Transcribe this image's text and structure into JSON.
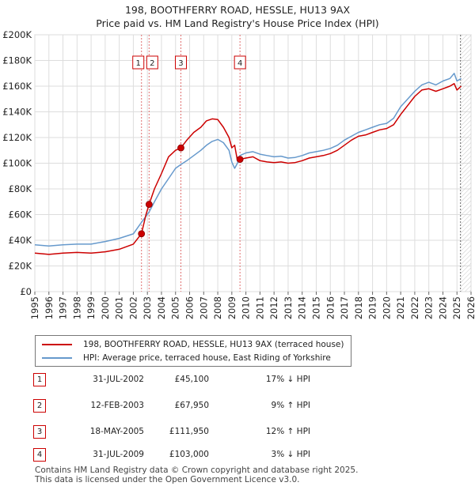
{
  "header": {
    "title_line1": "198, BOOTHFERRY ROAD, HESSLE, HU13 9AX",
    "title_line2": "Price paid vs. HM Land Registry's House Price Index (HPI)"
  },
  "chart_data": {
    "type": "line",
    "xlim": [
      1995,
      2026
    ],
    "ylim": [
      0,
      200000
    ],
    "x_ticks": [
      1995,
      1996,
      1997,
      1998,
      1999,
      2000,
      2001,
      2002,
      2003,
      2004,
      2005,
      2006,
      2007,
      2008,
      2009,
      2010,
      2011,
      2012,
      2013,
      2014,
      2015,
      2016,
      2017,
      2018,
      2019,
      2020,
      2021,
      2022,
      2023,
      2024,
      2025,
      2026
    ],
    "x_tick_labels": [
      "1995",
      "1996",
      "1997",
      "1998",
      "1999",
      "2000",
      "2001",
      "2002",
      "2003",
      "2004",
      "2005",
      "2006",
      "2007",
      "2008",
      "2009",
      "2010",
      "2011",
      "2012",
      "2013",
      "2014",
      "2015",
      "2016",
      "2017",
      "2018",
      "2019",
      "2020",
      "2021",
      "2022",
      "2023",
      "2024",
      "2025",
      "2026"
    ],
    "y_ticks": [
      0,
      20000,
      40000,
      60000,
      80000,
      100000,
      120000,
      140000,
      160000,
      180000,
      200000
    ],
    "y_tick_labels": [
      "£0",
      "£20K",
      "£40K",
      "£60K",
      "£80K",
      "£100K",
      "£120K",
      "£140K",
      "£160K",
      "£180K",
      "£200K"
    ],
    "grid": true,
    "future_hatch_from": 2025.25,
    "series": [
      {
        "name": "198, BOOTHFERRY ROAD, HESSLE, HU13 9AX (terraced house)",
        "color": "#cc0000",
        "points": [
          [
            1995.0,
            30000
          ],
          [
            1996.0,
            29000
          ],
          [
            1997.0,
            30000
          ],
          [
            1998.0,
            30500
          ],
          [
            1999.0,
            30000
          ],
          [
            2000.0,
            31000
          ],
          [
            2001.0,
            33000
          ],
          [
            2002.0,
            37000
          ],
          [
            2002.58,
            45100
          ],
          [
            2002.9,
            60000
          ],
          [
            2003.12,
            67950
          ],
          [
            2003.5,
            80000
          ],
          [
            2004.0,
            92000
          ],
          [
            2004.5,
            105000
          ],
          [
            2005.0,
            110000
          ],
          [
            2005.38,
            111950
          ],
          [
            2005.8,
            118000
          ],
          [
            2006.3,
            124000
          ],
          [
            2006.8,
            128000
          ],
          [
            2007.2,
            133000
          ],
          [
            2007.6,
            134500
          ],
          [
            2008.0,
            134000
          ],
          [
            2008.4,
            128000
          ],
          [
            2008.8,
            120000
          ],
          [
            2009.0,
            112000
          ],
          [
            2009.2,
            114000
          ],
          [
            2009.4,
            102000
          ],
          [
            2009.58,
            103000
          ],
          [
            2010.0,
            104000
          ],
          [
            2010.5,
            105000
          ],
          [
            2011.0,
            102000
          ],
          [
            2011.5,
            101000
          ],
          [
            2012.0,
            100500
          ],
          [
            2012.5,
            101000
          ],
          [
            2013.0,
            100000
          ],
          [
            2013.5,
            100500
          ],
          [
            2014.0,
            102000
          ],
          [
            2014.5,
            104000
          ],
          [
            2015.0,
            105000
          ],
          [
            2015.5,
            106000
          ],
          [
            2016.0,
            107500
          ],
          [
            2016.5,
            110000
          ],
          [
            2017.0,
            114000
          ],
          [
            2017.5,
            118000
          ],
          [
            2018.0,
            121000
          ],
          [
            2018.5,
            122000
          ],
          [
            2019.0,
            124000
          ],
          [
            2019.5,
            126000
          ],
          [
            2020.0,
            127000
          ],
          [
            2020.5,
            130000
          ],
          [
            2021.0,
            138000
          ],
          [
            2021.5,
            145000
          ],
          [
            2022.0,
            152000
          ],
          [
            2022.5,
            157000
          ],
          [
            2023.0,
            158000
          ],
          [
            2023.5,
            156000
          ],
          [
            2024.0,
            158000
          ],
          [
            2024.5,
            160000
          ],
          [
            2024.8,
            162000
          ],
          [
            2025.0,
            157000
          ],
          [
            2025.3,
            160000
          ]
        ]
      },
      {
        "name": "HPI: Average price, terraced house, East Riding of Yorkshire",
        "color": "#6699cc",
        "points": [
          [
            1995.0,
            36500
          ],
          [
            1996.0,
            35500
          ],
          [
            1997.0,
            36500
          ],
          [
            1998.0,
            37000
          ],
          [
            1999.0,
            37000
          ],
          [
            2000.0,
            39000
          ],
          [
            2001.0,
            41500
          ],
          [
            2002.0,
            45000
          ],
          [
            2002.58,
            54000
          ],
          [
            2003.12,
            62000
          ],
          [
            2003.5,
            70000
          ],
          [
            2004.0,
            80000
          ],
          [
            2004.5,
            88000
          ],
          [
            2005.0,
            96000
          ],
          [
            2005.38,
            99000
          ],
          [
            2005.8,
            102000
          ],
          [
            2006.3,
            106000
          ],
          [
            2006.8,
            110000
          ],
          [
            2007.2,
            114000
          ],
          [
            2007.6,
            117000
          ],
          [
            2008.0,
            118500
          ],
          [
            2008.4,
            116000
          ],
          [
            2008.8,
            110000
          ],
          [
            2009.0,
            101000
          ],
          [
            2009.2,
            96000
          ],
          [
            2009.4,
            100000
          ],
          [
            2009.58,
            106000
          ],
          [
            2010.0,
            108000
          ],
          [
            2010.5,
            109000
          ],
          [
            2011.0,
            107000
          ],
          [
            2011.5,
            106000
          ],
          [
            2012.0,
            105000
          ],
          [
            2012.5,
            105500
          ],
          [
            2013.0,
            104000
          ],
          [
            2013.5,
            104500
          ],
          [
            2014.0,
            106000
          ],
          [
            2014.5,
            108000
          ],
          [
            2015.0,
            109000
          ],
          [
            2015.5,
            110000
          ],
          [
            2016.0,
            111500
          ],
          [
            2016.5,
            114000
          ],
          [
            2017.0,
            118000
          ],
          [
            2017.5,
            121000
          ],
          [
            2018.0,
            124000
          ],
          [
            2018.5,
            126000
          ],
          [
            2019.0,
            128000
          ],
          [
            2019.5,
            130000
          ],
          [
            2020.0,
            131000
          ],
          [
            2020.5,
            135000
          ],
          [
            2021.0,
            144000
          ],
          [
            2021.5,
            150000
          ],
          [
            2022.0,
            156000
          ],
          [
            2022.5,
            161000
          ],
          [
            2023.0,
            163000
          ],
          [
            2023.5,
            161000
          ],
          [
            2024.0,
            164000
          ],
          [
            2024.5,
            166000
          ],
          [
            2024.8,
            170000
          ],
          [
            2025.0,
            164000
          ],
          [
            2025.3,
            166000
          ]
        ]
      }
    ],
    "sales": [
      {
        "label": "1",
        "x": 2002.58,
        "y": 45100
      },
      {
        "label": "2",
        "x": 2003.12,
        "y": 67950
      },
      {
        "label": "3",
        "x": 2005.38,
        "y": 111950
      },
      {
        "label": "4",
        "x": 2009.58,
        "y": 103000
      }
    ]
  },
  "legend": {
    "property_label": "198, BOOTHFERRY ROAD, HESSLE, HU13 9AX (terraced house)",
    "hpi_label": "HPI: Average price, terraced house, East Riding of Yorkshire",
    "property_color": "#cc0000",
    "hpi_color": "#6699cc"
  },
  "transactions": [
    {
      "num": "1",
      "date": "31-JUL-2002",
      "price": "£45,100",
      "hpi": "17% ↓ HPI"
    },
    {
      "num": "2",
      "date": "12-FEB-2003",
      "price": "£67,950",
      "hpi": "9% ↑ HPI"
    },
    {
      "num": "3",
      "date": "18-MAY-2005",
      "price": "£111,950",
      "hpi": "12% ↑ HPI"
    },
    {
      "num": "4",
      "date": "31-JUL-2009",
      "price": "£103,000",
      "hpi": "3% ↓ HPI"
    }
  ],
  "footer": {
    "line1": "Contains HM Land Registry data © Crown copyright and database right 2025.",
    "line2": "This data is licensed under the Open Government Licence v3.0."
  }
}
